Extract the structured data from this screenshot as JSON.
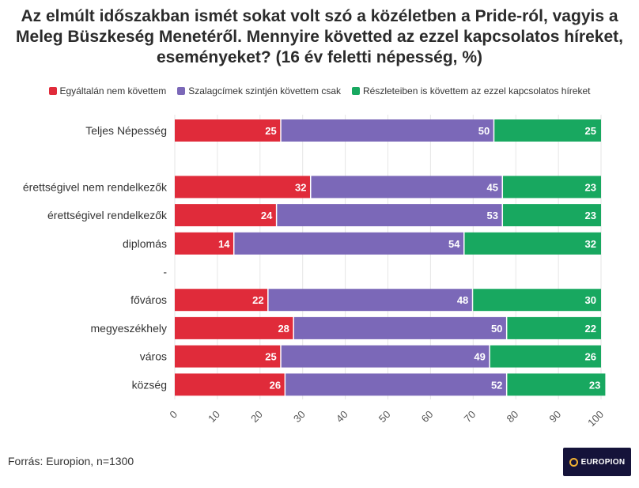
{
  "title": "Az elmúlt időszakban ismét sokat volt szó a közéletben a Pride-ról, vagyis a Meleg Büszkeség Menetéről. Mennyire követted az ezzel kapcsolatos híreket, eseményeket? (16 év feletti népesség, %)",
  "legend": [
    {
      "label": "Egyáltalán nem követtem",
      "color": "#e02b3a"
    },
    {
      "label": "Szalagcímek szintjén követtem csak",
      "color": "#7b68b8"
    },
    {
      "label": "Részleteiben is követtem az ezzel kapcsolatos híreket",
      "color": "#18a860"
    }
  ],
  "source": "Forrás: Europion, n=1300",
  "logo_text": "EUROPION",
  "chart_data": {
    "type": "bar",
    "orientation": "horizontal",
    "stacked": true,
    "categories": [
      "Teljes Népesség",
      "",
      "érettségivel nem rendelkezők",
      "érettségivel rendelkezők",
      "diplomás",
      "-",
      "főváros",
      "megyeszékhely",
      "város",
      "község"
    ],
    "series": [
      {
        "name": "Egyáltalán nem követtem",
        "color": "#e02b3a",
        "values": [
          25,
          null,
          32,
          24,
          14,
          null,
          22,
          28,
          25,
          26
        ]
      },
      {
        "name": "Szalagcímek szintjén követtem csak",
        "color": "#7b68b8",
        "values": [
          50,
          null,
          45,
          53,
          54,
          null,
          48,
          50,
          49,
          52
        ]
      },
      {
        "name": "Részleteiben is követtem az ezzel kapcsolatos híreket",
        "color": "#18a860",
        "values": [
          25,
          null,
          23,
          23,
          32,
          null,
          30,
          22,
          26,
          23
        ]
      }
    ],
    "xlim": [
      0,
      100
    ],
    "xticks": [
      0,
      10,
      20,
      30,
      40,
      50,
      60,
      70,
      80,
      90,
      100
    ],
    "grid": true,
    "legend": "top"
  }
}
